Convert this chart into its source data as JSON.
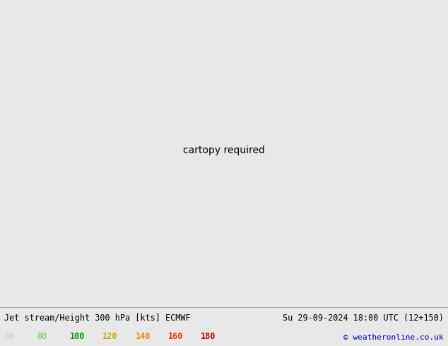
{
  "title_left": "Jet stream/Height 300 hPa [kts] ECMWF",
  "title_right": "Su 29-09-2024 18:00 UTC (12+150)",
  "copyright": "© weatheronline.co.uk",
  "legend_values": [
    "60",
    "80",
    "100",
    "120",
    "140",
    "160",
    "180"
  ],
  "legend_colors": [
    "#aaddaa",
    "#66cc44",
    "#009900",
    "#ccaa00",
    "#ee8800",
    "#ee3300",
    "#bb0000"
  ],
  "bg_color": "#e8e8e8",
  "ocean_color": "#e8e8e8",
  "land_color": "#c8dcb0",
  "us_state_color": "#b8d0a0",
  "fig_width": 6.34,
  "fig_height": 4.9,
  "dpi": 100,
  "contour_color": "#000000",
  "contour_lw": 1.3,
  "jet_light_green": "#bbeeaa",
  "jet_med_green": "#66cc44",
  "jet_dark_green": "#00bb00",
  "jet_yellow": "#ffee00",
  "title_fontsize": 8.5,
  "legend_fontsize": 8.5,
  "copyright_fontsize": 8,
  "contour_label_size": 7
}
